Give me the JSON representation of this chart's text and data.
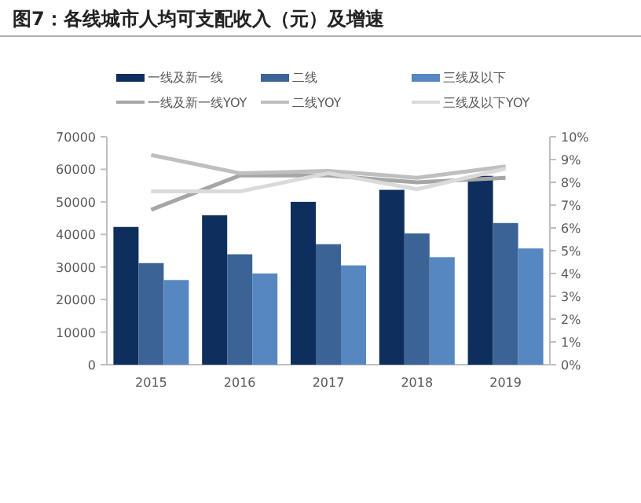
{
  "chart_data": {
    "type": "bar",
    "title": "图7：各线城市人均可支配收入（元）及增速",
    "categories": [
      "2015",
      "2016",
      "2017",
      "2018",
      "2019"
    ],
    "series": [
      {
        "name": "一线及新一线",
        "color": "#0e2f5e",
        "values": [
          42300,
          45900,
          50000,
          53700,
          58000
        ]
      },
      {
        "name": "二线",
        "color": "#3b6396",
        "values": [
          31200,
          33900,
          37000,
          40300,
          43500
        ]
      },
      {
        "name": "三线及以下",
        "color": "#5687c1",
        "values": [
          26000,
          28000,
          30500,
          33000,
          35700
        ]
      },
      {
        "name": "一线及新一线YOY",
        "color": "#a6a6a6",
        "type": "line",
        "axis": "y2",
        "values": [
          6.8,
          8.3,
          8.3,
          8.0,
          8.2
        ]
      },
      {
        "name": "二线YOY",
        "color": "#bfbfbf",
        "type": "line",
        "axis": "y2",
        "values": [
          9.2,
          8.4,
          8.5,
          8.2,
          8.7
        ]
      },
      {
        "name": "三线及以下YOY",
        "color": "#dadada",
        "type": "line",
        "axis": "y2",
        "values": [
          7.6,
          7.6,
          8.4,
          7.7,
          8.6
        ]
      }
    ],
    "ylim": [
      0,
      70000
    ],
    "yticks": [
      0,
      10000,
      20000,
      30000,
      40000,
      50000,
      60000,
      70000
    ],
    "y2lim": [
      0,
      10
    ],
    "y2ticks": [
      {
        "value": 0,
        "label": "0%"
      },
      {
        "value": 1,
        "label": "1%"
      },
      {
        "value": 2,
        "label": "2%"
      },
      {
        "value": 3,
        "label": "3%"
      },
      {
        "value": 4,
        "label": "4%"
      },
      {
        "value": 5,
        "label": "5%"
      },
      {
        "value": 6,
        "label": "6%"
      },
      {
        "value": 7,
        "label": "7%"
      },
      {
        "value": 8,
        "label": "8%"
      },
      {
        "value": 9,
        "label": "9%"
      },
      {
        "value": 10,
        "label": "10%"
      }
    ],
    "legend": "top"
  }
}
